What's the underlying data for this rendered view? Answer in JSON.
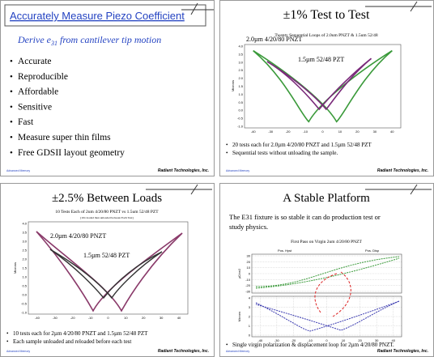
{
  "slides": [
    {
      "title": "Accurately Measure Piezo Coefficient",
      "subtitle": {
        "pre": "Derive ",
        "sym": "e",
        "sub": "31",
        "post": " from cantilever tip motion"
      },
      "bullets": [
        "Accurate",
        "Reproducible",
        "Affordable",
        "Sensitive",
        "Fast",
        "Measure super thin films",
        "Free GDSII layout geometry"
      ],
      "footer": {
        "left": "Advanced Memory",
        "right": "Radiant Technologies, Inc."
      }
    },
    {
      "title": "±1% Test to Test",
      "chart": {
        "title": "Twenty Sequential Loops of 2.0um PNZT & 1.5um 52/48",
        "labels": [
          "2.0µm 4/20/80 PNZT",
          "1.5µm 52/48 PZT"
        ],
        "ylabel": "Microns",
        "xticks": [
          "-40",
          "-30",
          "-20",
          "-10",
          "0",
          "10",
          "20",
          "30",
          "40"
        ],
        "yticks": [
          "4.0",
          "3.5",
          "3.0",
          "2.5",
          "2.0",
          "1.5",
          "1.0",
          "0.5",
          "0.0",
          "-0.5",
          "-1.0"
        ]
      },
      "bullets": [
        "20 tests each for 2.0µm 4/20/80 PNZT and 1.5µm 52/48 PZT",
        "Sequential tests without unloading the sample."
      ],
      "footer": {
        "left": "Advanced Memory",
        "right": "Radiant Technologies, Inc."
      }
    },
    {
      "title": "±2.5% Between Loads",
      "chart": {
        "title": "10 Tests Each of 2um 4/20/80 PNZT vs 1.5um 52/48 PZT",
        "subtitle": "[10x loaded then unloaded between Each Test]",
        "labels": [
          "2.0µm 4/20/80 PNZT",
          "1.5µm 52/48 PZT"
        ],
        "ylabel": "Microns",
        "xticks": [
          "-40",
          "-30",
          "-20",
          "-10",
          "0",
          "10",
          "20",
          "30",
          "40"
        ],
        "yticks": [
          "4.0",
          "3.5",
          "3.0",
          "2.5",
          "2.0",
          "1.5",
          "1.0",
          "0.5",
          "0.0",
          "-0.5",
          "-1.0"
        ]
      },
      "bullets": [
        "10 tests each for 2µm 4/20/80 PNZT and 1.5µm 52/48 PZT",
        "Each sample unloaded and reloaded before each test"
      ],
      "footer": {
        "left": "Advanced Memory",
        "right": "Radiant Technologies, Inc."
      }
    },
    {
      "title": "A Stable Platform",
      "text": [
        "The E31 fixture is so stable it can do production test or",
        "study physics."
      ],
      "chart": {
        "title": "First Pass on Virgin 2um 4/20/80 PNZT",
        "labels": [
          "Pos. Hyst",
          "Pos. Disp"
        ],
        "ylabels": [
          "µC/cm2",
          "Microns"
        ],
        "xticks": [
          "-40",
          "-30",
          "-20",
          "-10",
          "0",
          "10",
          "20",
          "30",
          "40"
        ],
        "yticks_top": [
          "30",
          "20",
          "10",
          "0",
          "-10",
          "-20",
          "-30"
        ],
        "yticks_bottom": [
          "4",
          "3",
          "2",
          "1",
          "0"
        ]
      },
      "bullets": [
        "Single virgin polarization & displacement loop for 2µm 4/20/80 PNZT."
      ],
      "footer": {
        "left": "Advanced Memory",
        "right": "Radiant Technologies, Inc."
      }
    }
  ]
}
